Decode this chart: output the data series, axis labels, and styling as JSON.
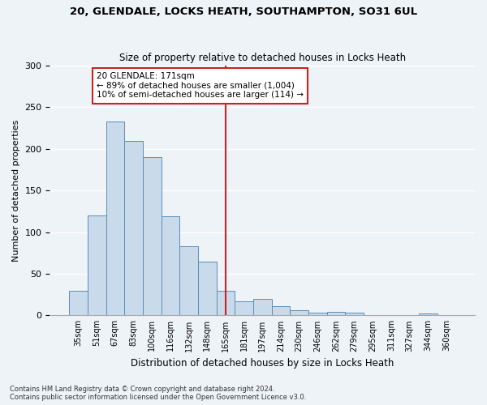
{
  "title": "20, GLENDALE, LOCKS HEATH, SOUTHAMPTON, SO31 6UL",
  "subtitle": "Size of property relative to detached houses in Locks Heath",
  "xlabel": "Distribution of detached houses by size in Locks Heath",
  "ylabel": "Number of detached properties",
  "bar_color": "#c9daea",
  "bar_edge_color": "#5b8db8",
  "background_color": "#eef3f8",
  "grid_color": "#ffffff",
  "categories": [
    "35sqm",
    "51sqm",
    "67sqm",
    "83sqm",
    "100sqm",
    "116sqm",
    "132sqm",
    "148sqm",
    "165sqm",
    "181sqm",
    "197sqm",
    "214sqm",
    "230sqm",
    "246sqm",
    "262sqm",
    "279sqm",
    "295sqm",
    "311sqm",
    "327sqm",
    "344sqm",
    "360sqm"
  ],
  "values": [
    30,
    120,
    233,
    210,
    190,
    119,
    83,
    65,
    30,
    17,
    20,
    11,
    6,
    3,
    4,
    3,
    0,
    0,
    0,
    2,
    0
  ],
  "vline_bin_index": 8,
  "annotation_title": "20 GLENDALE: 171sqm",
  "annotation_line1": "← 89% of detached houses are smaller (1,004)",
  "annotation_line2": "10% of semi-detached houses are larger (114) →",
  "vline_color": "#cc2222",
  "annotation_box_color": "#ffffff",
  "annotation_box_edge": "#cc2222",
  "ylim": [
    0,
    300
  ],
  "yticks": [
    0,
    50,
    100,
    150,
    200,
    250,
    300
  ],
  "footnote1": "Contains HM Land Registry data © Crown copyright and database right 2024.",
  "footnote2": "Contains public sector information licensed under the Open Government Licence v3.0."
}
